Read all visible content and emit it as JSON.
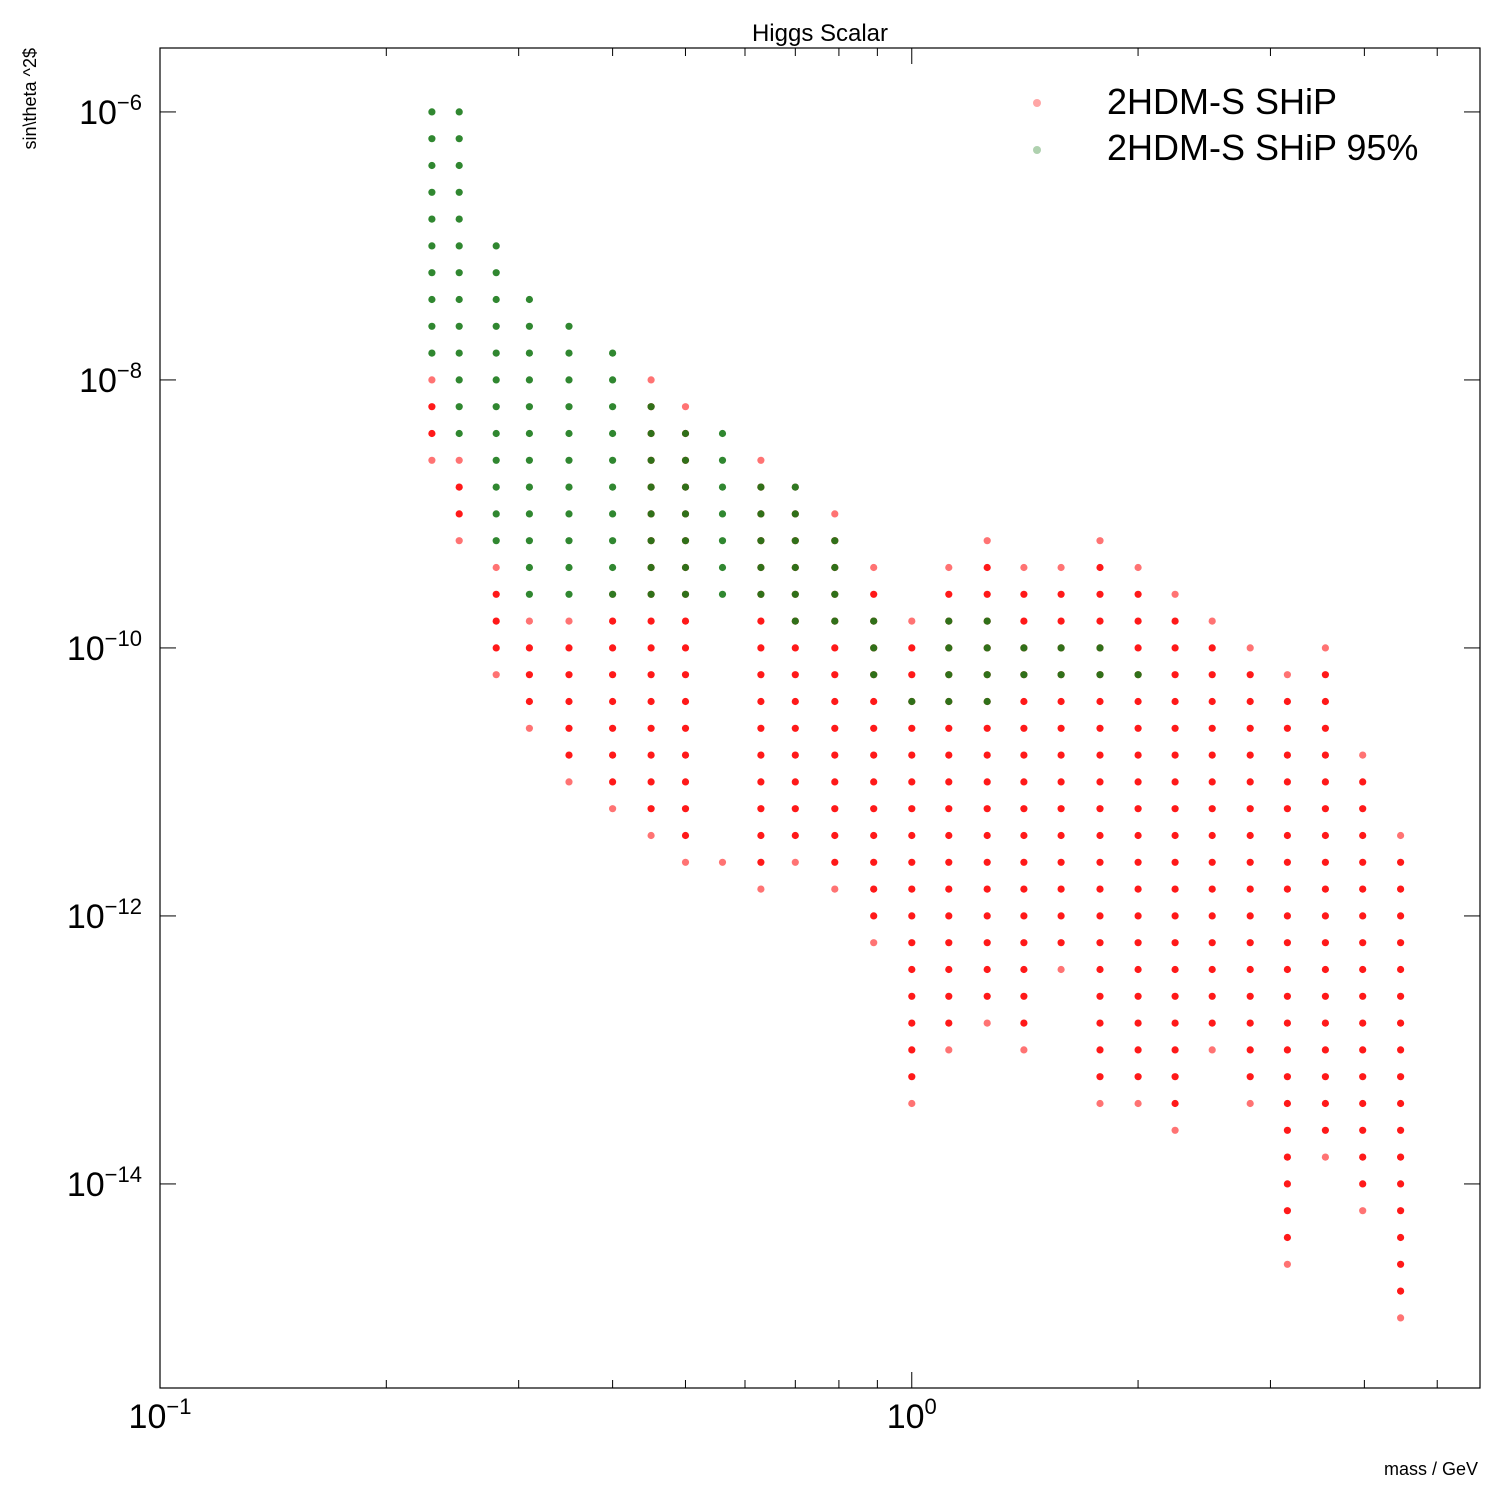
{
  "chart_data": {
    "type": "scatter",
    "title": "Higgs Scalar",
    "xlabel": "mass / GeV",
    "ylabel": "sin\\theta ^2$",
    "xscale": "log",
    "yscale": "log",
    "xlim": [
      0.1,
      5.7
    ],
    "ylim": [
      3e-16,
      3e-06
    ],
    "x_ticks": [
      {
        "value": 0.1,
        "mantissa": "10",
        "exponent": "−1"
      },
      {
        "value": 1,
        "mantissa": "10",
        "exponent": "0"
      }
    ],
    "y_ticks": [
      {
        "value": 1e-06,
        "mantissa": "10",
        "exponent": "−6"
      },
      {
        "value": 1e-08,
        "mantissa": "10",
        "exponent": "−8"
      },
      {
        "value": 1e-10,
        "mantissa": "10",
        "exponent": "−10"
      },
      {
        "value": 1e-12,
        "mantissa": "10",
        "exponent": "−12"
      },
      {
        "value": 1e-14,
        "mantissa": "10",
        "exponent": "−14"
      }
    ],
    "legend_placement": "top-right",
    "grid": false,
    "x_values": [
      0.23,
      0.25,
      0.28,
      0.31,
      0.35,
      0.4,
      0.45,
      0.5,
      0.56,
      0.63,
      0.7,
      0.79,
      0.89,
      1.0,
      1.12,
      1.26,
      1.41,
      1.58,
      1.78,
      2.0,
      2.24,
      2.51,
      2.82,
      3.16,
      3.55,
      3.98,
      4.47
    ],
    "y_grid_exponent_step": 0.2,
    "series": [
      {
        "name": "2HDM-S SHiP",
        "color": "#ff0000",
        "points_by_x": [
          [
            0.23,
            -8.0,
            -8.6
          ],
          [
            0.25,
            -8.6,
            -9.2
          ],
          [
            0.28,
            -9.4,
            -9.6,
            -10.2
          ],
          [
            0.31,
            -9.8,
            -10.0,
            -10.6
          ],
          [
            0.35,
            -9.8,
            -11.0
          ],
          [
            0.4,
            -9.6,
            -11.2
          ],
          [
            0.45,
            -8.0,
            -11.4
          ],
          [
            0.5,
            -8.2,
            -11.6
          ],
          [
            0.56,
            -11.6
          ],
          [
            0.63,
            -8.6,
            -11.8
          ],
          [
            0.7,
            -8.8,
            -11.6
          ],
          [
            0.79,
            -9.0,
            -11.8
          ],
          [
            0.89,
            -9.4,
            -12.2
          ],
          [
            1.0,
            -9.8,
            -12.6,
            -13.4
          ],
          [
            1.12,
            -9.4,
            -13.0
          ],
          [
            1.26,
            -9.2,
            -12.8
          ],
          [
            1.41,
            -9.4,
            -13.0
          ],
          [
            1.58,
            -9.4,
            -12.4
          ],
          [
            1.78,
            -9.2,
            -13.4
          ],
          [
            2.0,
            -9.4,
            -13.4
          ],
          [
            2.24,
            -9.6,
            -13.6
          ],
          [
            2.51,
            -9.8,
            -13.0
          ],
          [
            2.82,
            -10.0,
            -13.4
          ],
          [
            3.16,
            -10.2,
            -14.6
          ],
          [
            3.55,
            -10.0,
            -13.8
          ],
          [
            3.98,
            -10.8,
            -14.2
          ],
          [
            4.47,
            -11.4,
            -15.0
          ]
        ]
      },
      {
        "name": "2HDM-S SHiP 95%",
        "color": "#1a7a1a",
        "points_by_x": [
          [
            0.23,
            -6.0,
            -7.8
          ],
          [
            0.25,
            -6.0,
            -8.4
          ],
          [
            0.28,
            -7.0,
            -9.2
          ],
          [
            0.31,
            -7.4,
            -9.6
          ],
          [
            0.35,
            -7.6,
            -9.6
          ],
          [
            0.4,
            -7.8,
            -9.6
          ],
          [
            0.45,
            -8.2,
            -9.6
          ],
          [
            0.5,
            -8.4,
            -9.6
          ],
          [
            0.56,
            -8.4,
            -9.6
          ],
          [
            0.63,
            -8.8,
            -9.6
          ],
          [
            0.7,
            -8.8,
            -9.8
          ],
          [
            0.79,
            -9.2,
            -9.8
          ],
          [
            0.89,
            -9.8,
            -10.2
          ],
          [
            1.0,
            -10.4,
            -10.4
          ],
          [
            1.12,
            -9.8,
            -10.4
          ],
          [
            1.26,
            -9.8,
            -10.4
          ],
          [
            1.41,
            -10.0,
            -10.2
          ],
          [
            1.58,
            -10.0,
            -10.2
          ],
          [
            1.78,
            -10.0,
            -10.2
          ],
          [
            2.0,
            -10.2,
            -10.2
          ]
        ]
      }
    ]
  }
}
